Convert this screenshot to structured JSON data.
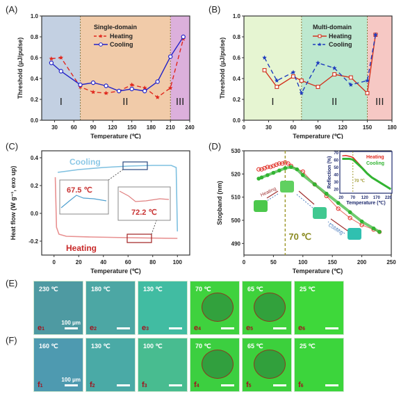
{
  "panels": {
    "A": "(A)",
    "B": "(B)",
    "C": "(C)",
    "D": "(D)",
    "E": "(E)",
    "F": "(F)"
  },
  "chart_data": [
    {
      "id": "A",
      "type": "line",
      "title": "Single-domain",
      "xlabel": "Temperature (℃)",
      "ylabel": "Threshold (μJ/pulse)",
      "xlim": [
        10,
        240
      ],
      "ylim": [
        0,
        1.0
      ],
      "xticks": [
        30,
        60,
        90,
        120,
        150,
        180,
        210,
        240
      ],
      "yticks": [
        "0.0",
        "0.2",
        "0.4",
        "0.6",
        "0.8",
        "1.0"
      ],
      "regions": [
        {
          "label": "I",
          "from": 10,
          "to": 70,
          "color": "#c3d0e2"
        },
        {
          "label": "II",
          "from": 70,
          "to": 210,
          "color": "#f1cba9"
        },
        {
          "label": "III",
          "from": 210,
          "to": 240,
          "color": "#dcb0dc"
        }
      ],
      "series": [
        {
          "name": "Heating",
          "style": "dashed-star",
          "color": "#e0281e",
          "x": [
            25,
            40,
            70,
            90,
            110,
            130,
            150,
            170,
            190,
            210,
            230
          ],
          "y": [
            0.59,
            0.6,
            0.32,
            0.27,
            0.26,
            0.28,
            0.34,
            0.31,
            0.22,
            0.31,
            0.78
          ]
        },
        {
          "name": "Cooling",
          "style": "solid-circle",
          "color": "#2323c8",
          "x": [
            25,
            40,
            70,
            90,
            110,
            130,
            150,
            170,
            190,
            210,
            230
          ],
          "y": [
            0.55,
            0.47,
            0.34,
            0.36,
            0.33,
            0.28,
            0.3,
            0.28,
            0.37,
            0.61,
            0.8
          ]
        }
      ]
    },
    {
      "id": "B",
      "type": "line",
      "title": "Multi-domain",
      "xlabel": "Temperature (℃)",
      "ylabel": "Threshold (μJ/pulse)",
      "xlim": [
        0,
        180
      ],
      "ylim": [
        0,
        1.0
      ],
      "xticks": [
        0,
        30,
        60,
        90,
        120,
        150,
        180
      ],
      "yticks": [
        "0.0",
        "0.2",
        "0.4",
        "0.6",
        "0.8",
        "1.0"
      ],
      "regions": [
        {
          "label": "I",
          "from": 0,
          "to": 70,
          "color": "#e6f5d2"
        },
        {
          "label": "II",
          "from": 70,
          "to": 150,
          "color": "#bde8cf"
        },
        {
          "label": "III",
          "from": 150,
          "to": 180,
          "color": "#f6c8c4"
        }
      ],
      "series": [
        {
          "name": "Heating",
          "style": "solid-square",
          "color": "#d2321e",
          "x": [
            25,
            40,
            60,
            70,
            90,
            110,
            130,
            150,
            160
          ],
          "y": [
            0.48,
            0.32,
            0.42,
            0.38,
            0.32,
            0.44,
            0.41,
            0.26,
            0.82
          ]
        },
        {
          "name": "Cooling",
          "style": "dashed-star",
          "color": "#1e3cbe",
          "x": [
            25,
            40,
            60,
            70,
            90,
            110,
            130,
            150,
            160
          ],
          "y": [
            0.6,
            0.38,
            0.46,
            0.26,
            0.55,
            0.5,
            0.34,
            0.38,
            0.82
          ]
        }
      ]
    },
    {
      "id": "C",
      "type": "line",
      "xlabel": "Temperature (℃)",
      "ylabel": "Heat flow (W g⁻¹, exo up)",
      "xlim": [
        -10,
        110
      ],
      "ylim": [
        -0.3,
        0.45
      ],
      "xticks": [
        0,
        20,
        40,
        60,
        80,
        100
      ],
      "yticks": [
        "-0.2",
        "0.0",
        "0.2",
        "0.4"
      ],
      "series": [
        {
          "name": "Cooling",
          "color": "#7ec0e0",
          "x": [
            3,
            20,
            40,
            60,
            80,
            95,
            99,
            100
          ],
          "y": [
            0.295,
            0.315,
            0.33,
            0.34,
            0.345,
            0.345,
            0.33,
            -0.13
          ]
        },
        {
          "name": "Heating",
          "color": "#e89090",
          "x": [
            1,
            2,
            4,
            10,
            30,
            60,
            80,
            100
          ],
          "y": [
            0.26,
            -0.1,
            -0.15,
            -0.165,
            -0.17,
            -0.175,
            -0.178,
            -0.18
          ]
        }
      ],
      "annotations": {
        "cooling_peak": "67.5 ℃",
        "heating_peak": "72.2 ℃",
        "cooling_label": "Cooling",
        "heating_label": "Heating"
      }
    },
    {
      "id": "D",
      "type": "scatter",
      "xlabel": "Temperature (℃)",
      "ylabel": "Stopband (nm)",
      "xlim": [
        0,
        250
      ],
      "ylim": [
        485,
        530
      ],
      "xticks": [
        0,
        50,
        100,
        150,
        200,
        250
      ],
      "yticks": [
        "490",
        "500",
        "510",
        "520",
        "530"
      ],
      "vline": 70,
      "vline_label": "70 ℃",
      "arrow_labels": {
        "heating": "Heating",
        "cooling": "Cooling"
      },
      "series": [
        {
          "name": "Heating",
          "color": "#e0281e",
          "x": [
            25,
            30,
            35,
            40,
            45,
            50,
            55,
            60,
            65,
            70,
            75,
            80,
            100,
            120,
            140,
            160,
            180,
            200,
            220,
            230
          ],
          "y": [
            522,
            522,
            522.5,
            523,
            523,
            523.5,
            524,
            524.5,
            524.5,
            525,
            524.5,
            523.5,
            521,
            515.5,
            510.5,
            505,
            501,
            498,
            496,
            495
          ]
        },
        {
          "name": "Cooling",
          "color": "#32b432",
          "x": [
            25,
            30,
            40,
            50,
            60,
            70,
            80,
            90,
            100,
            120,
            140,
            160,
            180,
            200,
            220,
            230
          ],
          "y": [
            518,
            518.5,
            519.5,
            520.5,
            521.5,
            522.5,
            523,
            522,
            519.5,
            515.5,
            511.5,
            507.5,
            503.5,
            499.5,
            496.5,
            495
          ]
        }
      ],
      "inset": {
        "xlabel": "Temperature (℃)",
        "ylabel": "Reflection (%)",
        "xlim": [
          15,
          235
        ],
        "ylim": [
          15,
          72
        ],
        "xticks": [
          20,
          70,
          120,
          170,
          220
        ],
        "yticks": [
          "20",
          "30",
          "40",
          "50",
          "60",
          "70"
        ],
        "vline_label": "70 ℃",
        "series": [
          {
            "name": "Heating",
            "color": "#e0281e",
            "x": [
              25,
              40,
              55,
              70,
              90,
              110,
              130,
              150,
              170,
              190,
              210,
              230
            ],
            "y": [
              66,
              66.5,
              65.5,
              64,
              57,
              50,
              43,
              37,
              33,
              29,
              25,
              21
            ]
          },
          {
            "name": "Cooling",
            "color": "#32b432",
            "x": [
              25,
              40,
              55,
              70,
              90,
              110,
              130,
              150,
              170,
              190,
              210,
              230
            ],
            "y": [
              62,
              62,
              62,
              61,
              55,
              49,
              42,
              36.5,
              32.5,
              28.5,
              24.5,
              20.5
            ]
          }
        ]
      }
    }
  ],
  "micrographs": {
    "E": [
      {
        "temp": "230 ℃",
        "sub": "e",
        "idx": "1",
        "scale": "100 μm",
        "color": "#4e9aa2"
      },
      {
        "temp": "180 ℃",
        "sub": "e",
        "idx": "2",
        "color": "#4ca7a4"
      },
      {
        "temp": "130 ℃",
        "sub": "e",
        "idx": "3",
        "color": "#41bca2"
      },
      {
        "temp": "70 ℃",
        "sub": "e",
        "idx": "4",
        "color": "#3fd23e"
      },
      {
        "temp": "65 ℃",
        "sub": "e",
        "idx": "5",
        "color": "#3fd23c"
      },
      {
        "temp": "25 ℃",
        "sub": "e",
        "idx": "6",
        "color": "#3ed83a"
      }
    ],
    "F": [
      {
        "temp": "160 ℃",
        "sub": "f",
        "idx": "1",
        "scale": "100 μm",
        "color": "#4e9ab0"
      },
      {
        "temp": "130 ℃",
        "sub": "f",
        "idx": "2",
        "color": "#4aaaa6"
      },
      {
        "temp": "100 ℃",
        "sub": "f",
        "idx": "3",
        "color": "#48bc90"
      },
      {
        "temp": "70 ℃",
        "sub": "f",
        "idx": "4",
        "color": "#3ccf40"
      },
      {
        "temp": "65 ℃",
        "sub": "f",
        "idx": "5",
        "color": "#3cd03c"
      },
      {
        "temp": "25 ℃",
        "sub": "f",
        "idx": "6",
        "color": "#3cd53c"
      }
    ]
  }
}
